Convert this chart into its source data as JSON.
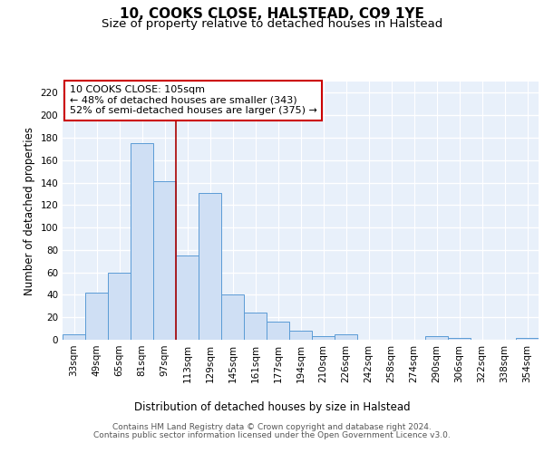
{
  "title": "10, COOKS CLOSE, HALSTEAD, CO9 1YE",
  "subtitle": "Size of property relative to detached houses in Halstead",
  "xlabel": "Distribution of detached houses by size in Halstead",
  "ylabel": "Number of detached properties",
  "categories": [
    "33sqm",
    "49sqm",
    "65sqm",
    "81sqm",
    "97sqm",
    "113sqm",
    "129sqm",
    "145sqm",
    "161sqm",
    "177sqm",
    "194sqm",
    "210sqm",
    "226sqm",
    "242sqm",
    "258sqm",
    "274sqm",
    "290sqm",
    "306sqm",
    "322sqm",
    "338sqm",
    "354sqm"
  ],
  "values": [
    5,
    42,
    60,
    175,
    141,
    75,
    131,
    40,
    24,
    16,
    8,
    3,
    5,
    0,
    0,
    0,
    3,
    2,
    0,
    0,
    2
  ],
  "bar_color": "#cfdff4",
  "bar_edge_color": "#5b9bd5",
  "background_color": "#e8f0fa",
  "grid_color": "#ffffff",
  "ylim": [
    0,
    230
  ],
  "yticks": [
    0,
    20,
    40,
    60,
    80,
    100,
    120,
    140,
    160,
    180,
    200,
    220
  ],
  "property_label": "10 COOKS CLOSE: 105sqm",
  "annotation_line1": "← 48% of detached houses are smaller (343)",
  "annotation_line2": "52% of semi-detached houses are larger (375) →",
  "annotation_box_color": "#ffffff",
  "annotation_border_color": "#cc0000",
  "vline_color": "#aa0000",
  "footer_line1": "Contains HM Land Registry data © Crown copyright and database right 2024.",
  "footer_line2": "Contains public sector information licensed under the Open Government Licence v3.0.",
  "title_fontsize": 11,
  "subtitle_fontsize": 9.5,
  "label_fontsize": 8.5,
  "tick_fontsize": 7.5,
  "footer_fontsize": 6.5,
  "annotation_fontsize": 8
}
